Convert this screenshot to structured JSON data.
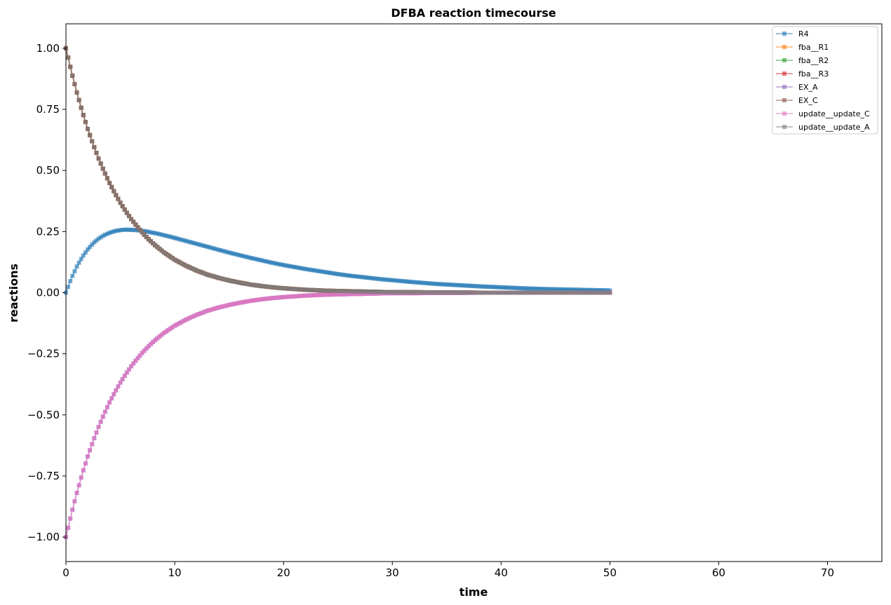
{
  "chart_data": {
    "type": "line",
    "title": "DFBA reaction timecourse",
    "xlabel": "time",
    "ylabel": "reactions",
    "xlim": [
      0,
      75
    ],
    "ylim": [
      -1.1,
      1.1
    ],
    "x_ticks": [
      0,
      10,
      20,
      30,
      40,
      50,
      60,
      70
    ],
    "x_tick_labels": [
      "0",
      "10",
      "20",
      "30",
      "40",
      "50",
      "60",
      "70"
    ],
    "y_ticks": [
      -1.0,
      -0.75,
      -0.5,
      -0.25,
      0.0,
      0.25,
      0.5,
      0.75,
      1.0
    ],
    "y_tick_labels": [
      "−1.00",
      "−0.75",
      "−0.50",
      "−0.25",
      "0.00",
      "0.25",
      "0.50",
      "0.75",
      "1.00"
    ],
    "grid": false,
    "legend_position": "top-right",
    "marker": "square",
    "x": [
      0,
      0.5,
      1,
      1.5,
      2,
      2.5,
      3,
      3.5,
      4,
      4.5,
      5,
      5.5,
      6,
      6.5,
      7,
      7.5,
      8,
      8.5,
      9,
      9.5,
      10,
      11,
      12,
      13,
      14,
      15,
      16,
      17,
      18,
      19,
      20,
      21,
      22,
      23,
      24,
      25,
      26,
      27,
      28,
      29,
      30,
      32,
      34,
      36,
      38,
      40,
      42,
      44,
      46,
      48,
      50
    ],
    "series": [
      {
        "name": "R4",
        "color": "#1f77b4",
        "values": [
          0,
          0.059,
          0.107,
          0.146,
          0.177,
          0.202,
          0.221,
          0.235,
          0.245,
          0.252,
          0.256,
          0.258,
          0.257,
          0.256,
          0.253,
          0.25,
          0.245,
          0.241,
          0.235,
          0.23,
          0.224,
          0.212,
          0.2,
          0.188,
          0.176,
          0.164,
          0.153,
          0.142,
          0.132,
          0.122,
          0.113,
          0.105,
          0.097,
          0.09,
          0.083,
          0.076,
          0.07,
          0.065,
          0.06,
          0.055,
          0.051,
          0.043,
          0.036,
          0.031,
          0.026,
          0.022,
          0.018,
          0.015,
          0.013,
          0.011,
          0.009
        ]
      },
      {
        "name": "fba__R1",
        "color": "#ff7f0e",
        "values": [
          1,
          0.905,
          0.819,
          0.741,
          0.67,
          0.607,
          0.549,
          0.497,
          0.449,
          0.407,
          0.368,
          0.333,
          0.301,
          0.273,
          0.247,
          0.223,
          0.202,
          0.183,
          0.165,
          0.15,
          0.135,
          0.111,
          0.091,
          0.074,
          0.061,
          0.05,
          0.041,
          0.033,
          0.027,
          0.022,
          0.018,
          0.015,
          0.012,
          0.01,
          0.008,
          0.007,
          0.006,
          0.005,
          0.004,
          0.003,
          0.002,
          0.002,
          0.001,
          0.001,
          0.0,
          0.0,
          0.0,
          0.0,
          0.0,
          0.0,
          0.0
        ]
      },
      {
        "name": "fba__R2",
        "color": "#2ca02c",
        "values": [
          1,
          0.905,
          0.819,
          0.741,
          0.67,
          0.607,
          0.549,
          0.497,
          0.449,
          0.407,
          0.368,
          0.333,
          0.301,
          0.273,
          0.247,
          0.223,
          0.202,
          0.183,
          0.165,
          0.15,
          0.135,
          0.111,
          0.091,
          0.074,
          0.061,
          0.05,
          0.041,
          0.033,
          0.027,
          0.022,
          0.018,
          0.015,
          0.012,
          0.01,
          0.008,
          0.007,
          0.006,
          0.005,
          0.004,
          0.003,
          0.002,
          0.002,
          0.001,
          0.001,
          0.0,
          0.0,
          0.0,
          0.0,
          0.0,
          0.0,
          0.0
        ]
      },
      {
        "name": "fba__R3",
        "color": "#d62728",
        "values": [
          1,
          0.905,
          0.819,
          0.741,
          0.67,
          0.607,
          0.549,
          0.497,
          0.449,
          0.407,
          0.368,
          0.333,
          0.301,
          0.273,
          0.247,
          0.223,
          0.202,
          0.183,
          0.165,
          0.15,
          0.135,
          0.111,
          0.091,
          0.074,
          0.061,
          0.05,
          0.041,
          0.033,
          0.027,
          0.022,
          0.018,
          0.015,
          0.012,
          0.01,
          0.008,
          0.007,
          0.006,
          0.005,
          0.004,
          0.003,
          0.002,
          0.002,
          0.001,
          0.001,
          0.0,
          0.0,
          0.0,
          0.0,
          0.0,
          0.0,
          0.0
        ]
      },
      {
        "name": "EX_A",
        "color": "#9467bd",
        "values": [
          -1,
          -0.905,
          -0.819,
          -0.741,
          -0.67,
          -0.607,
          -0.549,
          -0.497,
          -0.449,
          -0.407,
          -0.368,
          -0.333,
          -0.301,
          -0.273,
          -0.247,
          -0.223,
          -0.202,
          -0.183,
          -0.165,
          -0.15,
          -0.135,
          -0.111,
          -0.091,
          -0.074,
          -0.061,
          -0.05,
          -0.041,
          -0.033,
          -0.027,
          -0.022,
          -0.018,
          -0.015,
          -0.012,
          -0.01,
          -0.008,
          -0.007,
          -0.006,
          -0.005,
          -0.004,
          -0.003,
          -0.002,
          -0.002,
          -0.001,
          -0.001,
          0.0,
          0.0,
          0.0,
          0.0,
          0.0,
          0.0,
          0.0
        ]
      },
      {
        "name": "EX_C",
        "color": "#8c564b",
        "values": [
          1,
          0.905,
          0.819,
          0.741,
          0.67,
          0.607,
          0.549,
          0.497,
          0.449,
          0.407,
          0.368,
          0.333,
          0.301,
          0.273,
          0.247,
          0.223,
          0.202,
          0.183,
          0.165,
          0.15,
          0.135,
          0.111,
          0.091,
          0.074,
          0.061,
          0.05,
          0.041,
          0.033,
          0.027,
          0.022,
          0.018,
          0.015,
          0.012,
          0.01,
          0.008,
          0.007,
          0.006,
          0.005,
          0.004,
          0.003,
          0.002,
          0.002,
          0.001,
          0.001,
          0.0,
          0.0,
          0.0,
          0.0,
          0.0,
          0.0,
          0.0
        ]
      },
      {
        "name": "update__update_C",
        "color": "#e377c2",
        "values": [
          -1,
          -0.905,
          -0.819,
          -0.741,
          -0.67,
          -0.607,
          -0.549,
          -0.497,
          -0.449,
          -0.407,
          -0.368,
          -0.333,
          -0.301,
          -0.273,
          -0.247,
          -0.223,
          -0.202,
          -0.183,
          -0.165,
          -0.15,
          -0.135,
          -0.111,
          -0.091,
          -0.074,
          -0.061,
          -0.05,
          -0.041,
          -0.033,
          -0.027,
          -0.022,
          -0.018,
          -0.015,
          -0.012,
          -0.01,
          -0.008,
          -0.007,
          -0.006,
          -0.005,
          -0.004,
          -0.003,
          -0.002,
          -0.002,
          -0.001,
          -0.001,
          0.0,
          0.0,
          0.0,
          0.0,
          0.0,
          0.0,
          0.0
        ]
      },
      {
        "name": "update__update_A",
        "color": "#7f7f7f",
        "values": [
          1,
          0.905,
          0.819,
          0.741,
          0.67,
          0.607,
          0.549,
          0.497,
          0.449,
          0.407,
          0.368,
          0.333,
          0.301,
          0.273,
          0.247,
          0.223,
          0.202,
          0.183,
          0.165,
          0.15,
          0.135,
          0.111,
          0.091,
          0.074,
          0.061,
          0.05,
          0.041,
          0.033,
          0.027,
          0.022,
          0.018,
          0.015,
          0.012,
          0.01,
          0.008,
          0.007,
          0.006,
          0.005,
          0.004,
          0.003,
          0.002,
          0.002,
          0.001,
          0.001,
          0.0,
          0.0,
          0.0,
          0.0,
          0.0,
          0.0,
          0.0
        ]
      }
    ]
  }
}
